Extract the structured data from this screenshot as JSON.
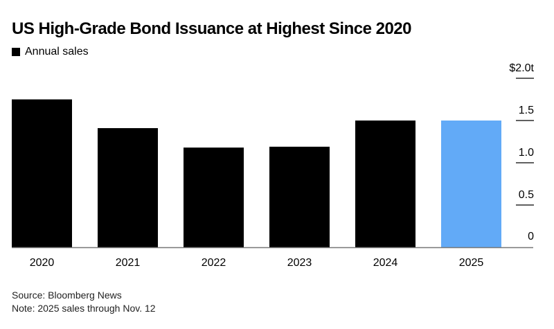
{
  "chart_data": {
    "type": "bar",
    "title": "US High-Grade Bond Issuance at Highest Since 2020",
    "legend": [
      {
        "name": "Annual sales",
        "color": "#000000"
      }
    ],
    "legend_placement": "top-left",
    "categories": [
      "2020",
      "2021",
      "2022",
      "2023",
      "2024",
      "2025"
    ],
    "series": [
      {
        "name": "Annual sales",
        "values": [
          1.75,
          1.41,
          1.18,
          1.19,
          1.5,
          1.5
        ]
      }
    ],
    "bar_colors": [
      "#000000",
      "#000000",
      "#000000",
      "#000000",
      "#000000",
      "#62aaf7"
    ],
    "ylim": [
      0,
      2.0
    ],
    "yticks": [
      0,
      0.5,
      1.0,
      1.5,
      2.0
    ],
    "ytick_labels": [
      "0",
      "0.5",
      "1.0",
      "1.5",
      "$2.0t"
    ],
    "y_axis_side": "right",
    "grid": false
  },
  "footer": {
    "source": "Source: Bloomberg News",
    "note": "Note: 2025 sales through Nov. 12"
  }
}
